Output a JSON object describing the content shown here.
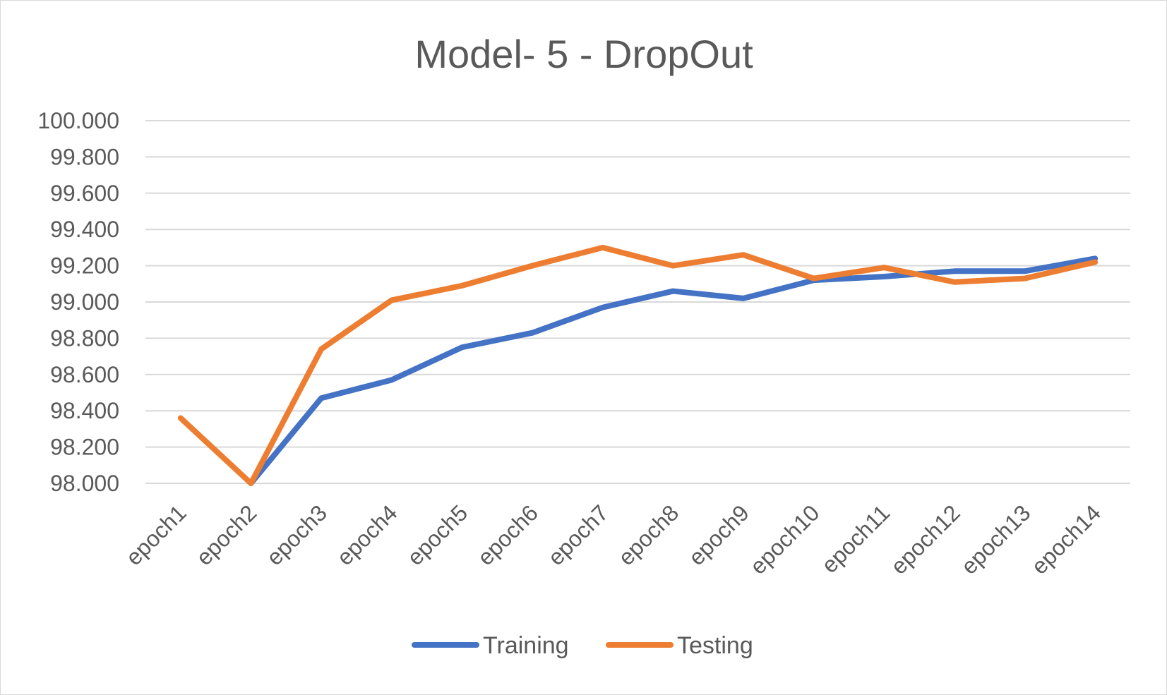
{
  "chart_data": {
    "type": "line",
    "title": "Model- 5 - DropOut",
    "xlabel": "",
    "ylabel": "",
    "categories": [
      "epoch1",
      "epoch2",
      "epoch3",
      "epoch4",
      "epoch5",
      "epoch6",
      "epoch7",
      "epoch8",
      "epoch9",
      "epoch10",
      "epoch11",
      "epoch12",
      "epoch13",
      "epoch14"
    ],
    "y_ticks": [
      "98.000",
      "98.200",
      "98.400",
      "98.600",
      "98.800",
      "99.000",
      "99.200",
      "99.400",
      "99.600",
      "99.800",
      "100.000"
    ],
    "ylim": [
      98.0,
      100.0
    ],
    "grid": true,
    "legend_position": "bottom",
    "series": [
      {
        "name": "Training",
        "color": "#4472c4",
        "values": [
          null,
          98.0,
          98.47,
          98.57,
          98.75,
          98.83,
          98.97,
          99.06,
          99.02,
          99.12,
          99.14,
          99.17,
          99.17,
          99.24
        ]
      },
      {
        "name": "Testing",
        "color": "#ed7d31",
        "values": [
          98.36,
          98.0,
          98.74,
          99.01,
          99.09,
          99.2,
          99.3,
          99.2,
          99.26,
          99.13,
          99.19,
          99.11,
          99.13,
          99.22
        ]
      }
    ]
  }
}
